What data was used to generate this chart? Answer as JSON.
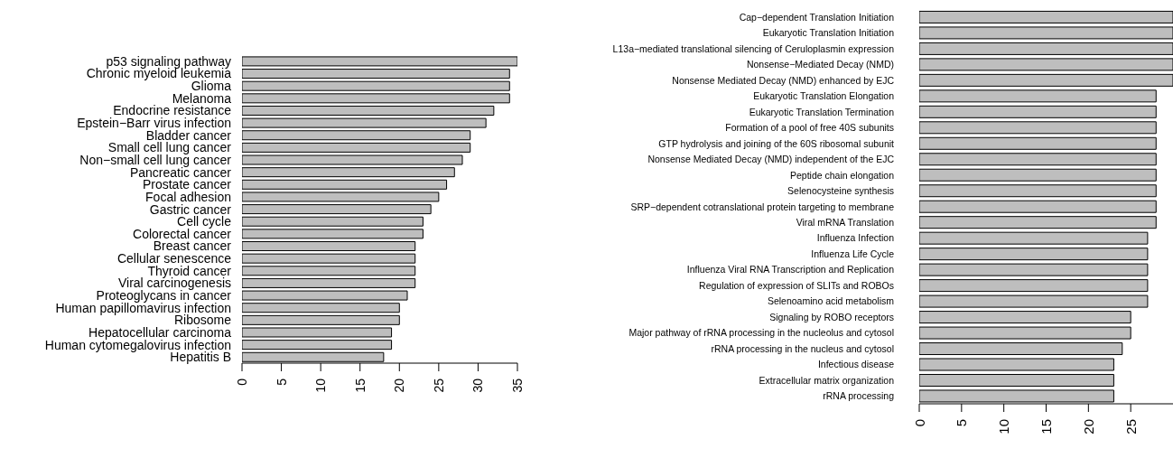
{
  "chart_data": [
    {
      "type": "bar",
      "orientation": "horizontal",
      "color": "#bebebe",
      "categories": [
        "p53 signaling pathway",
        "Chronic myeloid leukemia",
        "Glioma",
        "Melanoma",
        "Endocrine resistance",
        "Epstein−Barr virus infection",
        "Bladder cancer",
        "Small cell lung cancer",
        "Non−small cell lung cancer",
        "Pancreatic cancer",
        "Prostate cancer",
        "Focal adhesion",
        "Gastric cancer",
        "Cell cycle",
        "Colorectal cancer",
        "Breast cancer",
        "Cellular senescence",
        "Thyroid cancer",
        "Viral carcinogenesis",
        "Proteoglycans in cancer",
        "Human papillomavirus infection",
        "Ribosome",
        "Hepatocellular carcinoma",
        "Human cytomegalovirus infection",
        "Hepatitis B"
      ],
      "values": [
        35,
        34,
        34,
        34,
        32,
        31,
        29,
        29,
        28,
        27,
        26,
        25,
        24,
        23,
        23,
        22,
        22,
        22,
        22,
        21,
        20,
        20,
        19,
        19,
        18
      ],
      "xlim": [
        0,
        35
      ],
      "xticks": [
        0,
        5,
        10,
        15,
        20,
        25,
        30,
        35
      ]
    },
    {
      "type": "bar",
      "orientation": "horizontal",
      "color": "#bebebe",
      "categories": [
        "Cap−dependent Translation Initiation",
        "Eukaryotic Translation Initiation",
        "L13a−mediated translational silencing of Ceruloplasmin expression",
        "Nonsense−Mediated Decay (NMD)",
        "Nonsense Mediated Decay (NMD) enhanced by EJC",
        "Eukaryotic Translation Elongation",
        "Eukaryotic Translation Termination",
        "Formation of a pool of free 40S subunits",
        "GTP hydrolysis and joining of the 60S ribosomal subunit",
        "Nonsense Mediated Decay (NMD) independent of the EJC",
        "Peptide chain elongation",
        "Selenocysteine synthesis",
        "SRP−dependent cotranslational protein targeting to membrane",
        "Viral mRNA Translation",
        "Influenza Infection",
        "Influenza Life Cycle",
        "Influenza Viral RNA Transcription and Replication",
        "Regulation of expression of SLITs and ROBOs",
        "Selenoamino acid metabolism",
        "Signaling by ROBO receptors",
        "Major pathway of rRNA processing in the nucleolus and cytosol",
        "rRNA processing in the nucleus and cytosol",
        "Infectious disease",
        "Extracellular matrix organization",
        "rRNA processing"
      ],
      "values": [
        30,
        30,
        30,
        30,
        30,
        28,
        28,
        28,
        28,
        28,
        28,
        28,
        28,
        28,
        27,
        27,
        27,
        27,
        27,
        25,
        25,
        24,
        23,
        23,
        23
      ],
      "xlim": [
        0,
        30
      ],
      "xticks": [
        0,
        5,
        10,
        15,
        20,
        25
      ]
    }
  ]
}
